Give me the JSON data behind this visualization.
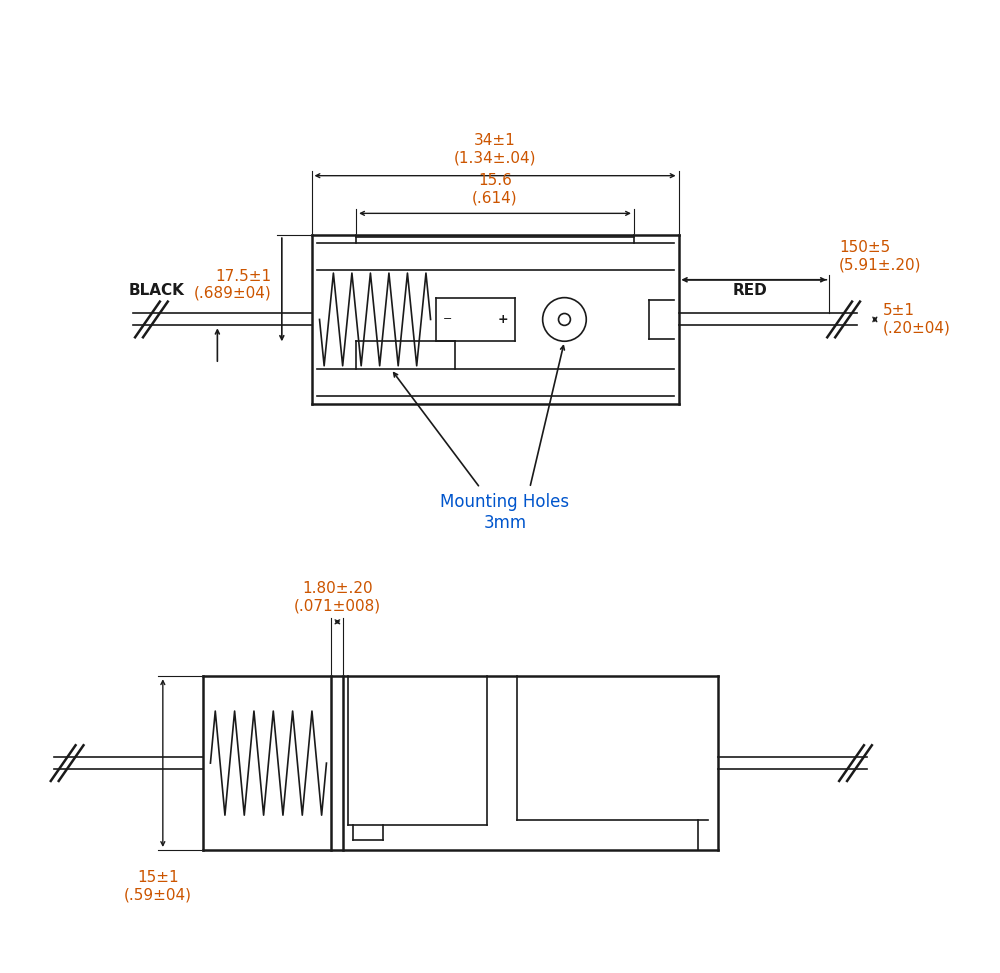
{
  "bg_color": "#ffffff",
  "line_color": "#1a1a1a",
  "dim_color": "#cc5500",
  "annotation_color": "#0055cc",
  "figsize": [
    10.0,
    9.73
  ],
  "dpi": 100,
  "top_view": {
    "dim_34_text": "34±1\n(1.34±.04)",
    "dim_156_text": "15.6\n(.614)",
    "dim_175_text": "17.5±1\n(.689±04)",
    "dim_150_text": "150±5\n(5.91±.20)",
    "dim_5_text": "5±1\n(.20±04)",
    "mounting_holes_text": "Mounting Holes\n3mm",
    "black_label": "BLACK",
    "red_label": "RED"
  },
  "side_view": {
    "dim_180_text": "1.80±.20\n(.071±008)",
    "dim_15_text": "15±1\n(.59±04)"
  }
}
